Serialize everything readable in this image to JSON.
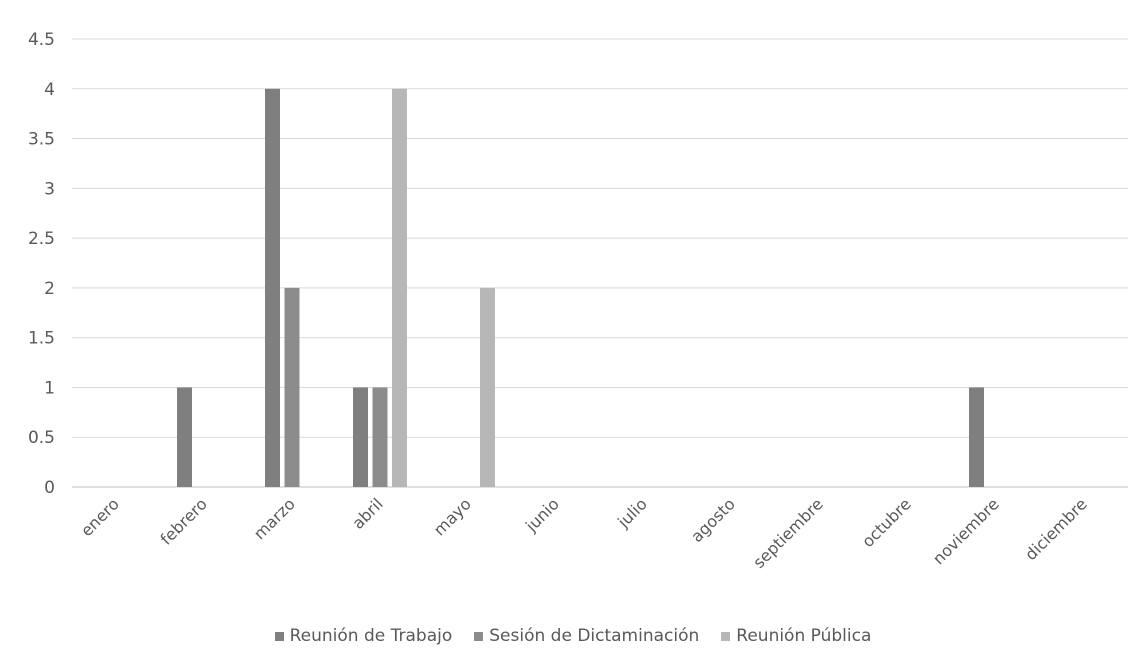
{
  "chart_data": {
    "type": "bar",
    "categories": [
      "enero",
      "febrero",
      "marzo",
      "abril",
      "mayo",
      "junio",
      "julio",
      "agosto",
      "septiembre",
      "octubre",
      "noviembre",
      "diciembre"
    ],
    "series": [
      {
        "name": "Reunión de Trabajo",
        "color": "#7f7f7f",
        "values": [
          0,
          1,
          4,
          1,
          0,
          0,
          0,
          0,
          0,
          0,
          1,
          0
        ]
      },
      {
        "name": "Sesión de Dictaminación",
        "color": "#8c8c8c",
        "values": [
          0,
          0,
          2,
          1,
          0,
          0,
          0,
          0,
          0,
          0,
          0,
          0
        ]
      },
      {
        "name": "Reunión Pública",
        "color": "#b7b7b7",
        "values": [
          0,
          0,
          0,
          4,
          2,
          0,
          0,
          0,
          0,
          0,
          0,
          0
        ]
      }
    ],
    "y_ticks": [
      "0",
      "0.5",
      "1",
      "1.5",
      "2",
      "2.5",
      "3",
      "3.5",
      "4",
      "4.5"
    ],
    "ylim": [
      0,
      4.5
    ],
    "grid": true,
    "legend_position": "bottom"
  }
}
